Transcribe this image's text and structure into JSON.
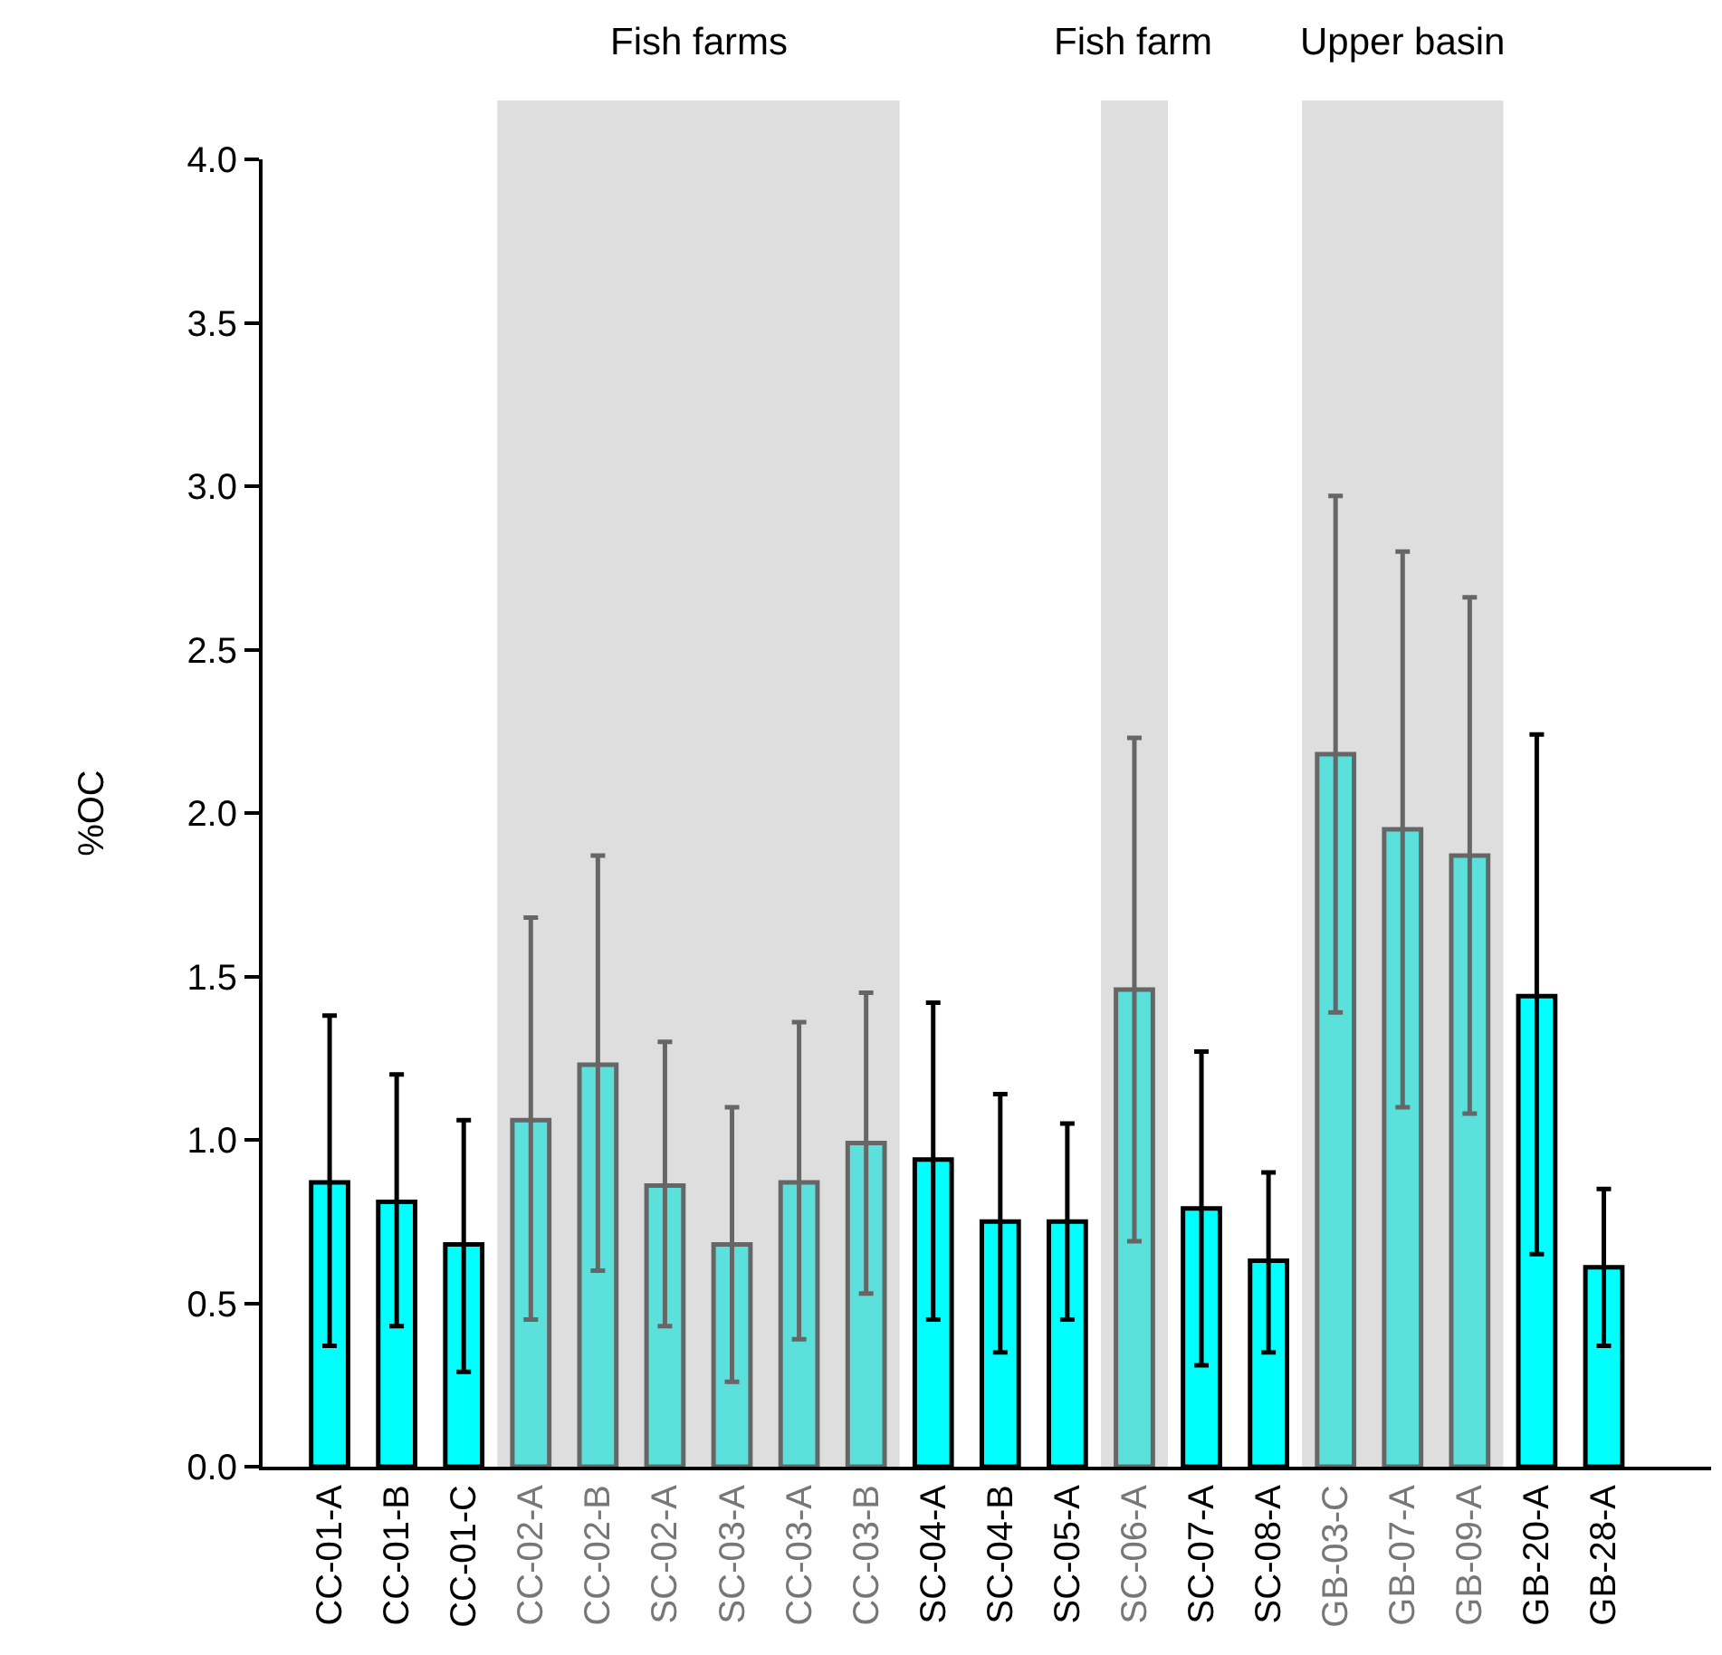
{
  "chart_data": {
    "type": "bar",
    "ylabel": "%OC",
    "categories": [
      "CC-01-A",
      "CC-01-B",
      "CC-01-C",
      "CC-02-A",
      "CC-02-B",
      "SC-02-A",
      "SC-03-A",
      "CC-03-A",
      "CC-03-B",
      "SC-04-A",
      "SC-04-B",
      "SC-05-A",
      "SC-06-A",
      "SC-07-A",
      "SC-08-A",
      "GB-03-C",
      "GB-07-A",
      "GB-09-A",
      "GB-20-A",
      "GB-28-A"
    ],
    "values": [
      0.87,
      0.81,
      0.68,
      1.06,
      1.23,
      0.86,
      0.68,
      0.87,
      0.99,
      0.94,
      0.75,
      0.75,
      1.46,
      0.79,
      0.63,
      2.18,
      1.95,
      1.87,
      1.44,
      0.61
    ],
    "errors": [
      [
        0.37,
        1.38
      ],
      [
        0.43,
        1.2
      ],
      [
        0.29,
        1.06
      ],
      [
        0.45,
        1.68
      ],
      [
        0.6,
        1.87
      ],
      [
        0.43,
        1.3
      ],
      [
        0.26,
        1.1
      ],
      [
        0.39,
        1.36
      ],
      [
        0.53,
        1.45
      ],
      [
        0.45,
        1.42
      ],
      [
        0.35,
        1.14
      ],
      [
        0.45,
        1.05
      ],
      [
        0.69,
        2.23
      ],
      [
        0.31,
        1.27
      ],
      [
        0.35,
        0.9
      ],
      [
        1.39,
        2.97
      ],
      [
        1.1,
        2.8
      ],
      [
        1.08,
        2.66
      ],
      [
        0.65,
        2.24
      ],
      [
        0.37,
        0.85
      ]
    ],
    "colors": [
      "#00ffff",
      "#00ffff",
      "#00ffff",
      "#5ce0dc",
      "#5ce0dc",
      "#5ce0dc",
      "#5ce0dc",
      "#5ce0dc",
      "#5ce0dc",
      "#00ffff",
      "#00ffff",
      "#00ffff",
      "#5ce0dc",
      "#00ffff",
      "#00ffff",
      "#5ce0dc",
      "#5ce0dc",
      "#5ce0dc",
      "#00ffff",
      "#00ffff"
    ],
    "bands": [
      {
        "axis": "x",
        "from": "CC-02-A",
        "to": "CC-03-B",
        "label": "Fish farms",
        "color": "#dedede"
      },
      {
        "axis": "x",
        "from": "SC-06-A",
        "to": "SC-06-A",
        "label": "Fish farm",
        "color": "#dedede"
      },
      {
        "axis": "x",
        "from": "GB-03-C",
        "to": "GB-09-A",
        "label": "Upper basin",
        "color": "#dedede"
      }
    ],
    "ylim": [
      0,
      4
    ],
    "yticks": [
      {
        "value": 0,
        "label": "0.0"
      },
      {
        "value": 0.5,
        "label": "0.5"
      },
      {
        "value": 1,
        "label": "1.0"
      },
      {
        "value": 1.5,
        "label": "1.5"
      },
      {
        "value": 2,
        "label": "2.0"
      },
      {
        "value": 2.5,
        "label": "2.5"
      },
      {
        "value": 3,
        "label": "3.0"
      },
      {
        "value": 3.5,
        "label": "3.5"
      },
      {
        "value": 4,
        "label": "4.0"
      }
    ],
    "grid": false
  }
}
